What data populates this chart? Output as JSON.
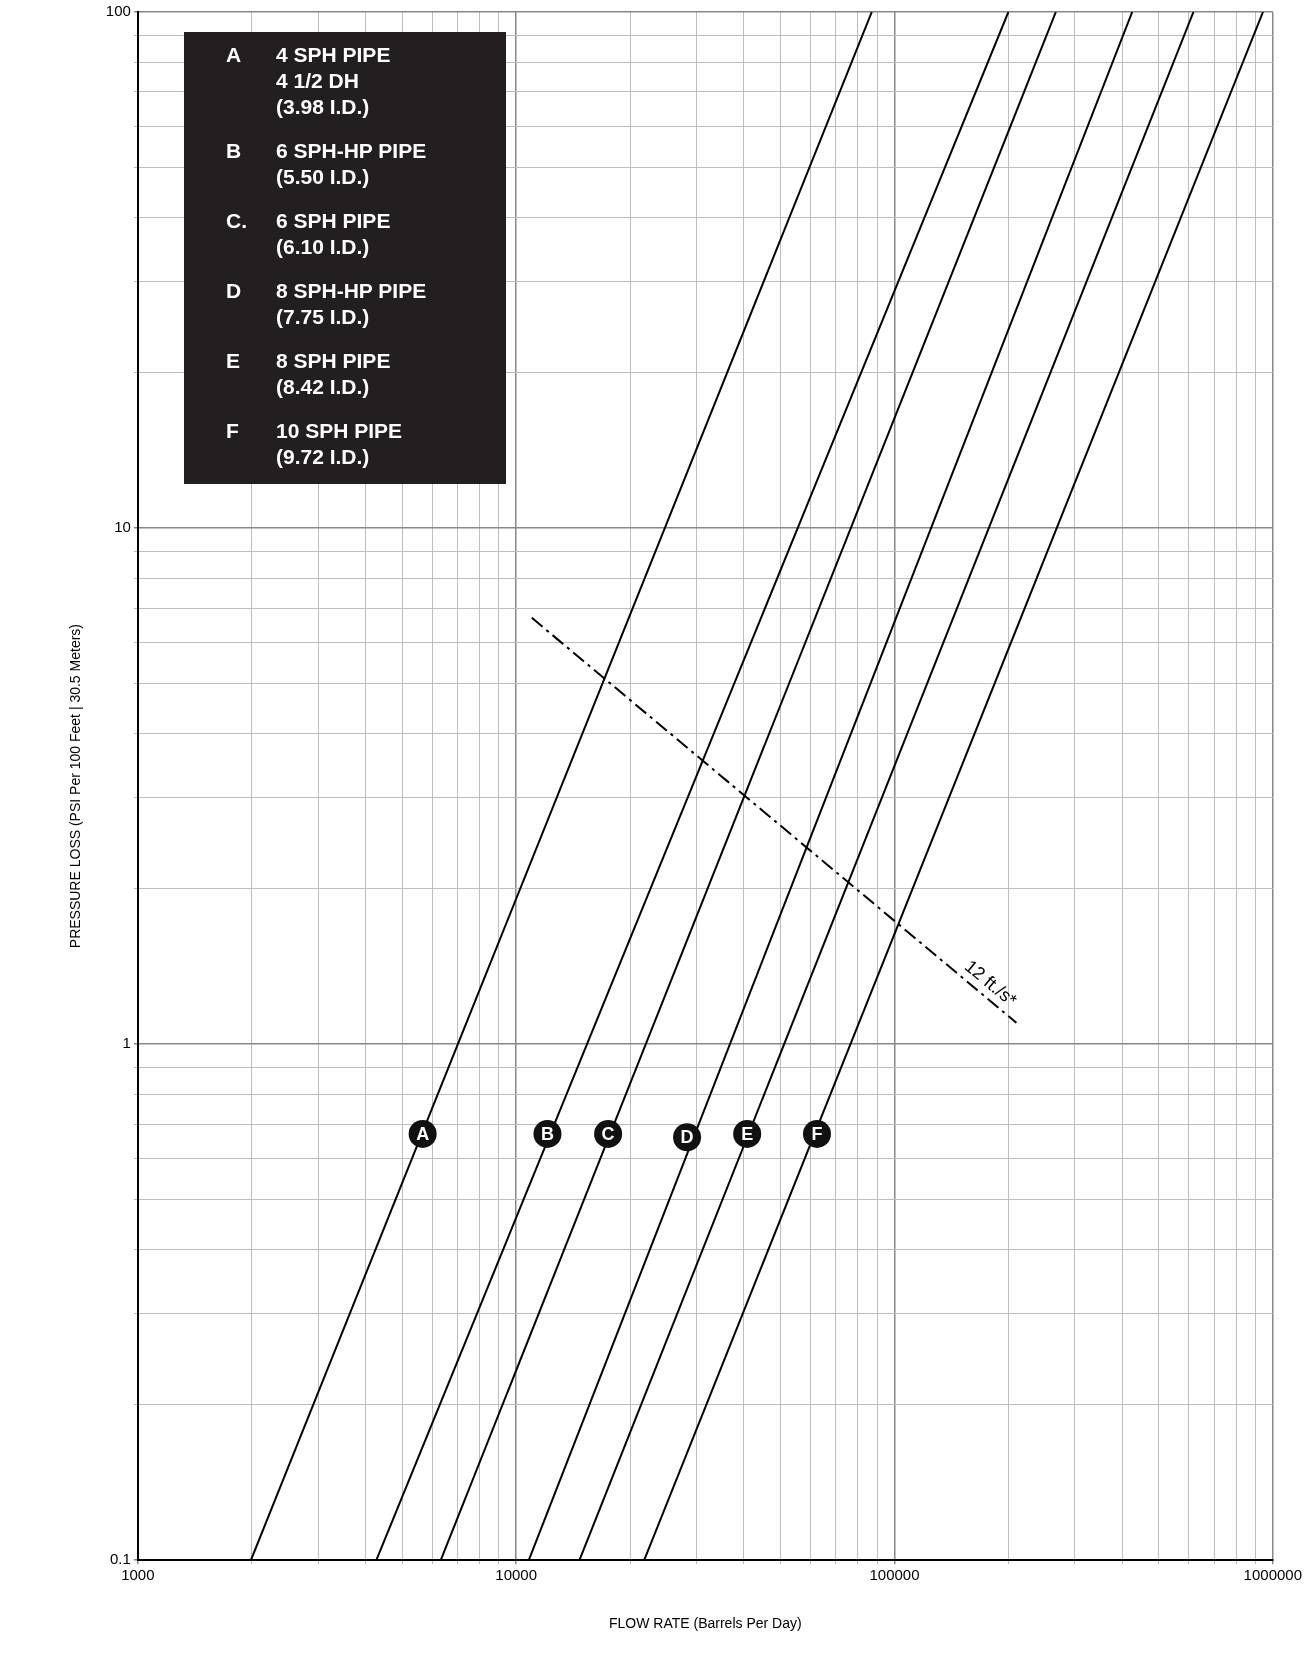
{
  "chart_data": {
    "type": "line",
    "xlabel": "FLOW RATE (Barrels Per Day)",
    "ylabel": "PRESSURE LOSS (PSI Per 100 Feet | 30.5 Meters)",
    "log": "xy",
    "grid": true,
    "legend": false,
    "marker": "none",
    "xlim": [
      1000,
      1000000
    ],
    "xticks": [
      1000,
      10000,
      100000,
      1000000
    ],
    "ylim": [
      0.1,
      100
    ],
    "yticks": [
      0.1,
      1,
      10,
      100
    ],
    "series": [
      {
        "color": "#000000",
        "x": [
          1990,
          87100
        ],
        "values": [
          0.1,
          100
        ]
      },
      {
        "color": "#000000",
        "x": [
          4270,
          200000
        ],
        "values": [
          0.1,
          100
        ]
      },
      {
        "color": "#000000",
        "x": [
          6320,
          267000
        ],
        "values": [
          0.1,
          100
        ]
      },
      {
        "color": "#000000",
        "x": [
          10800,
          425000
        ],
        "values": [
          0.1,
          100
        ]
      },
      {
        "color": "#000000",
        "x": [
          14700,
          617000
        ],
        "values": [
          0.1,
          100
        ]
      },
      {
        "color": "#000000",
        "x": [
          21800,
          942000
        ],
        "values": [
          0.1,
          100
        ]
      },
      {
        "name": "12 ft./s*",
        "color": "#000000",
        "line_style": "dashed",
        "x": [
          11000,
          210000
        ],
        "values": [
          6.7,
          1.1
        ]
      }
    ],
    "annotations": [
      "A 4 SPH PIPE\n4 1/2 DH\n(3.98 I.D.)",
      "B 6 SPH-HP PIPE\n(5.50  I.D.)",
      "C. 6 SPH PIPE\n(6.10 I.D.)",
      "D 8 SPH-HP PIPE\n(7.75 I.D.)",
      "E 8 SPH PIPE\n(8.42 I.D.)",
      "F 10 SPH PIPE\n(9.72 I.D.)",
      {
        "text": "A",
        "x": 5660,
        "y": 0.67
      },
      {
        "text": "B",
        "x": 12100,
        "y": 0.67
      },
      {
        "text": "C",
        "x": 17500,
        "y": 0.67
      },
      {
        "text": "D",
        "x": 28300,
        "y": 0.66
      },
      {
        "text": "E",
        "x": 40800,
        "y": 0.67
      },
      {
        "text": "F",
        "x": 62400,
        "y": 0.67
      }
    ]
  }
}
